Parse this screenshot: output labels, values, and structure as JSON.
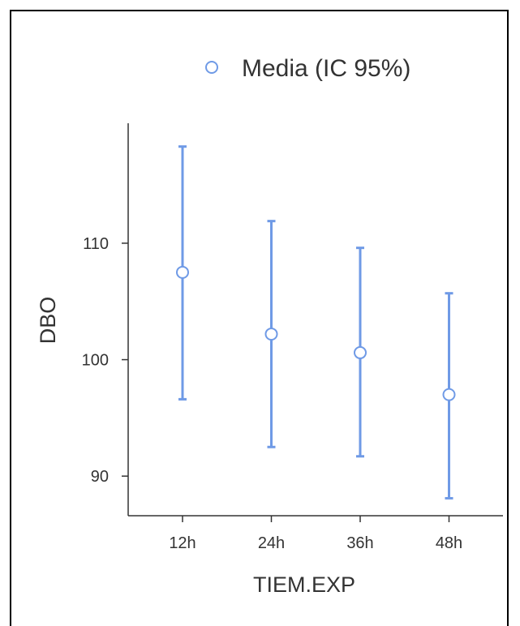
{
  "chart_data": {
    "type": "errorbar",
    "legend": {
      "label": "Media (IC 95%)",
      "position": "top"
    },
    "xlabel": "TIEM.EXP",
    "ylabel": "DBO",
    "categories": [
      "12h",
      "24h",
      "36h",
      "48h"
    ],
    "series": [
      {
        "name": "Media (IC 95%)",
        "mean": [
          107.5,
          102.2,
          100.6,
          97.0
        ],
        "lower": [
          96.6,
          92.5,
          91.7,
          88.1
        ],
        "upper": [
          118.3,
          111.9,
          109.6,
          105.7
        ]
      }
    ],
    "yticks": [
      90,
      100,
      110
    ],
    "ylim": [
      86.6,
      120.3
    ],
    "grid": false,
    "colors": {
      "series": "#6f9ae6",
      "marker_fill": "#ffffff",
      "axis": "#333333"
    }
  }
}
